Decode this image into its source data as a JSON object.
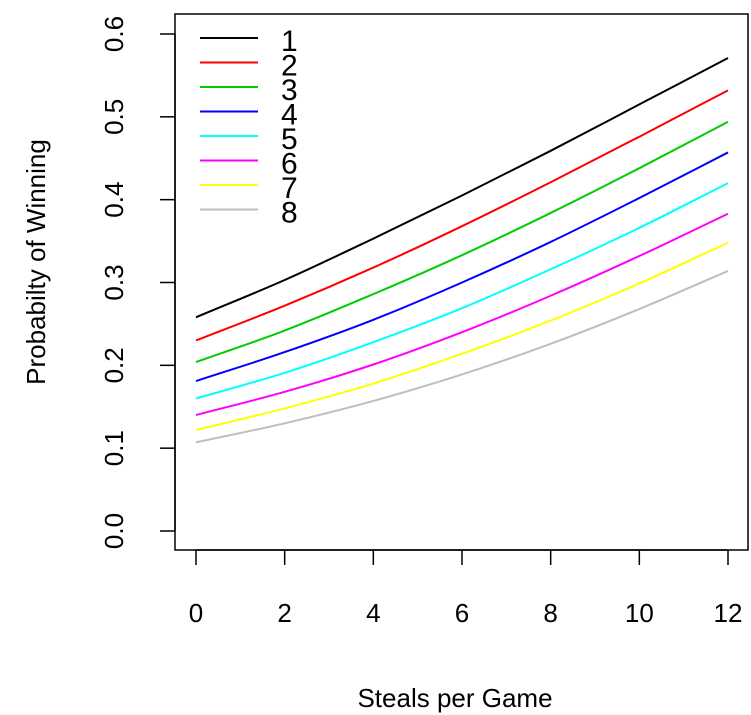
{
  "chart_data": {
    "type": "line",
    "title": "",
    "xlabel": "Steals per Game",
    "ylabel": "Probabilty of Winning",
    "xlim": [
      0,
      12
    ],
    "ylim": [
      0.0,
      0.6
    ],
    "x_ticks": [
      0,
      2,
      4,
      6,
      8,
      10,
      12
    ],
    "x_tick_labels": [
      "0",
      "2",
      "4",
      "6",
      "8",
      "10",
      "12"
    ],
    "y_ticks": [
      0.0,
      0.1,
      0.2,
      0.3,
      0.4,
      0.5,
      0.6
    ],
    "y_tick_labels": [
      "0.0",
      "0.1",
      "0.2",
      "0.3",
      "0.4",
      "0.5",
      "0.6"
    ],
    "grid": false,
    "legend_position": "top-left",
    "x": [
      0,
      2,
      4,
      6,
      8,
      10,
      12
    ],
    "series": [
      {
        "name": "1",
        "color": "#000000",
        "values": [
          0.258,
          0.303,
          0.353,
          0.405,
          0.459,
          0.515,
          0.571
        ]
      },
      {
        "name": "2",
        "color": "#ff0000",
        "values": [
          0.23,
          0.272,
          0.318,
          0.368,
          0.421,
          0.476,
          0.532
        ]
      },
      {
        "name": "3",
        "color": "#00cd00",
        "values": [
          0.204,
          0.242,
          0.286,
          0.333,
          0.384,
          0.438,
          0.494
        ]
      },
      {
        "name": "4",
        "color": "#0000ff",
        "values": [
          0.181,
          0.216,
          0.255,
          0.3,
          0.349,
          0.402,
          0.457
        ]
      },
      {
        "name": "5",
        "color": "#00ffff",
        "values": [
          0.16,
          0.191,
          0.228,
          0.269,
          0.316,
          0.366,
          0.42
        ]
      },
      {
        "name": "6",
        "color": "#ff00ff",
        "values": [
          0.14,
          0.168,
          0.201,
          0.24,
          0.284,
          0.332,
          0.383
        ]
      },
      {
        "name": "7",
        "color": "#ffff00",
        "values": [
          0.122,
          0.148,
          0.178,
          0.214,
          0.254,
          0.299,
          0.348
        ]
      },
      {
        "name": "8",
        "color": "#bebebe",
        "values": [
          0.107,
          0.13,
          0.157,
          0.189,
          0.226,
          0.268,
          0.314
        ]
      }
    ]
  }
}
